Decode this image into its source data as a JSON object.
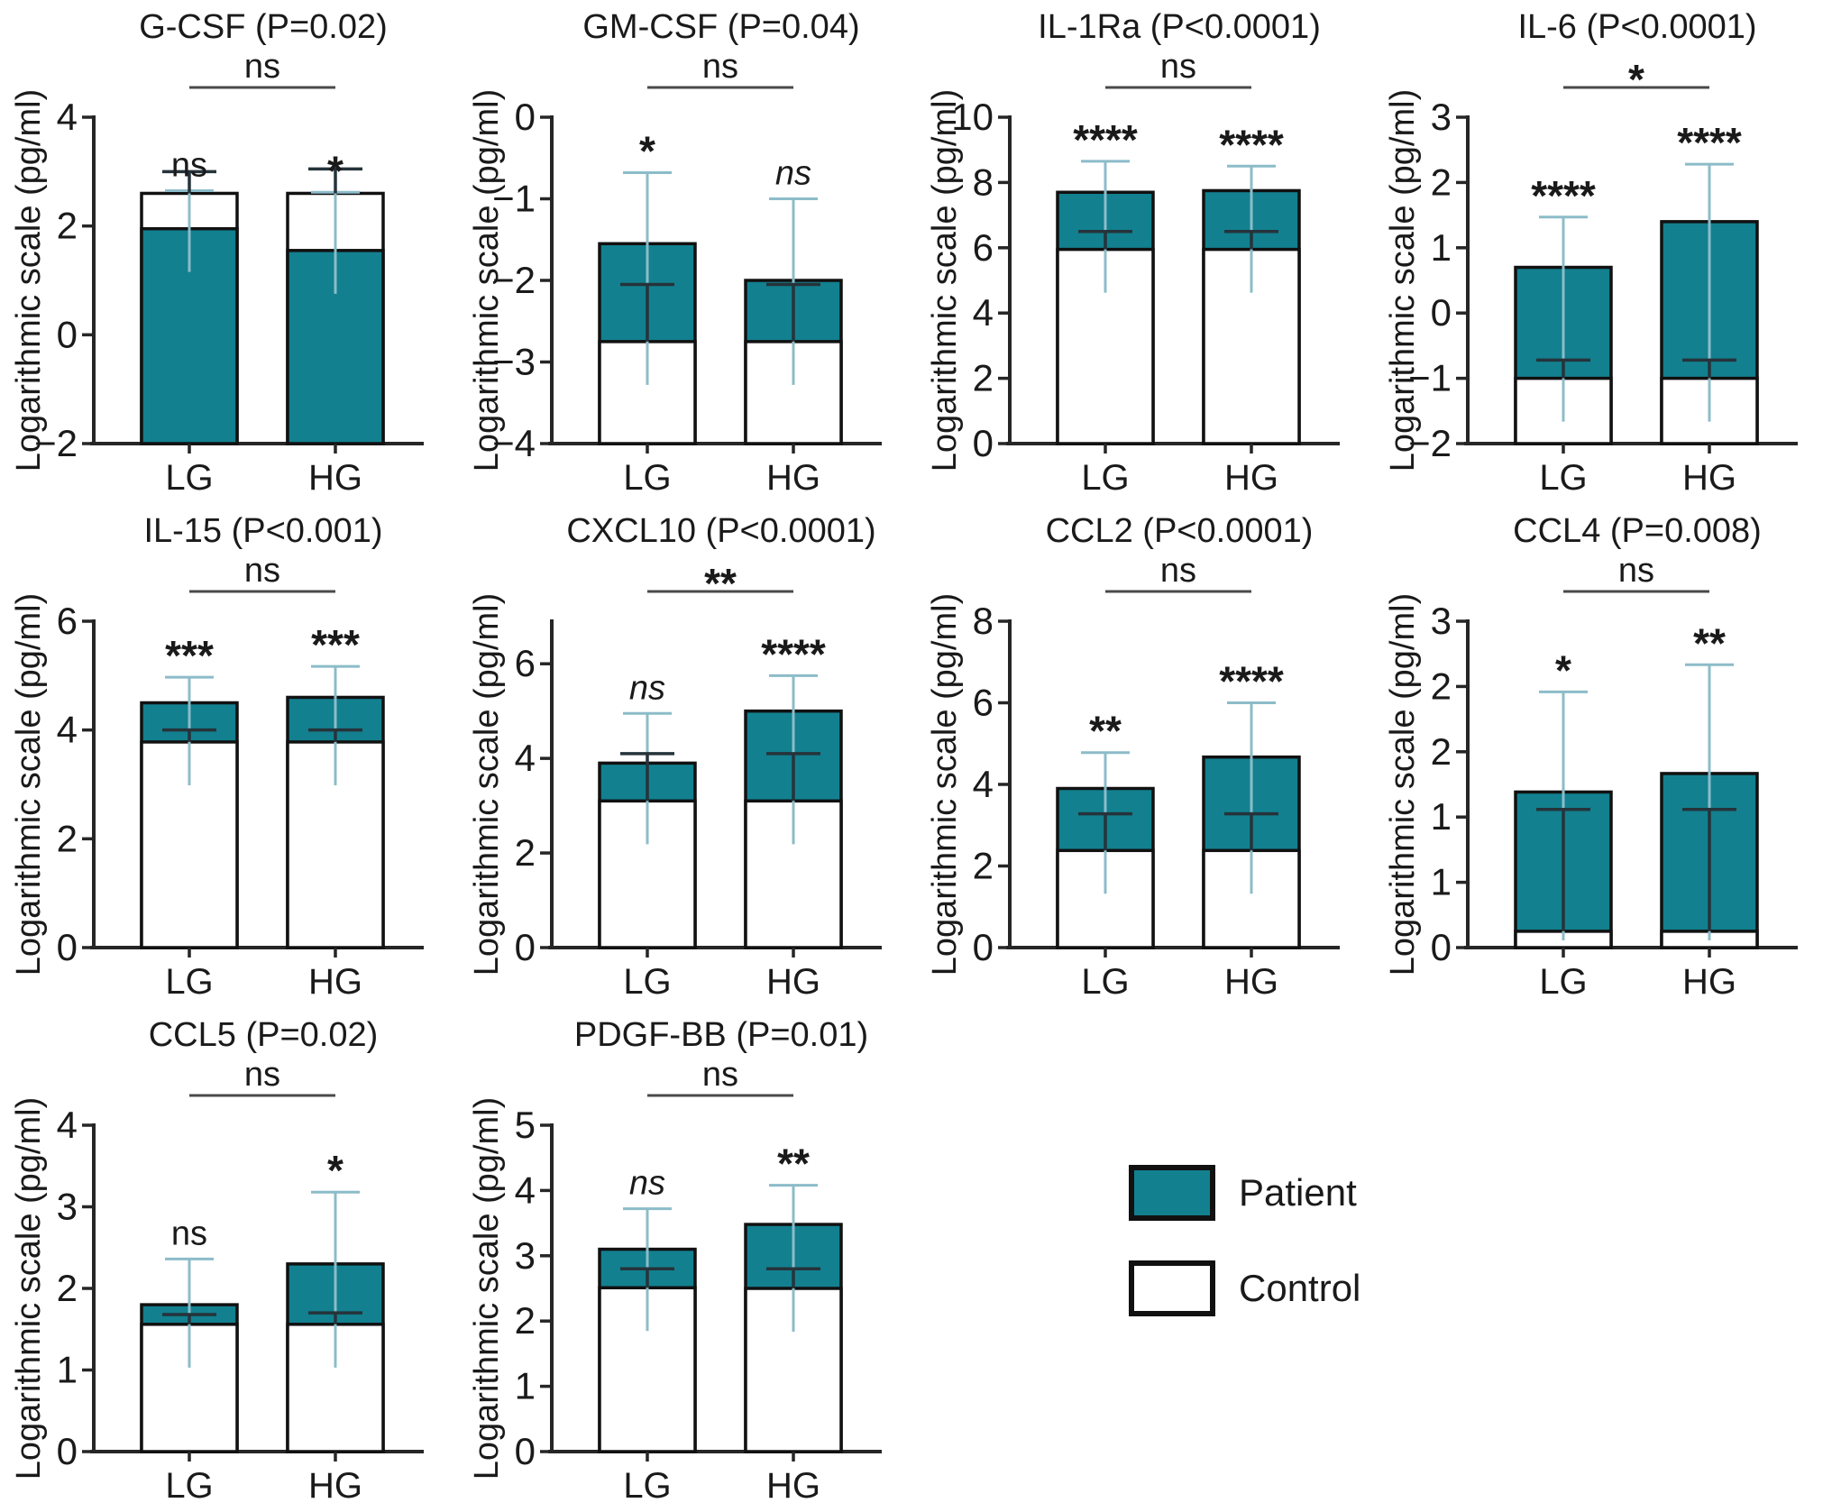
{
  "figure": {
    "y_axis_label": "Logarithmic scale (pg/ml)",
    "categories": [
      "LG",
      "HG"
    ]
  },
  "legend": {
    "patient": "Patient",
    "control": "Control"
  },
  "colors": {
    "patient_fill": "#12808f",
    "patient_error": "#8cbcc9",
    "control_fill": "#ffffff",
    "control_error": "#26333a",
    "outline": "#111111",
    "axis": "#262626",
    "bracket": "#4a4a4a",
    "text": "#1a1a1a"
  },
  "chart_data": [
    {
      "type": "bar",
      "title": "G-CSF (P=0.02)",
      "ylabel": "Logarithmic scale (pg/ml)",
      "ylim": [
        -2,
        4
      ],
      "yticks": [
        {
          "v": 4,
          "label": "4"
        },
        {
          "v": 2,
          "label": "2"
        },
        {
          "v": 0,
          "label": "0"
        },
        {
          "v": -2,
          "label": "−2"
        }
      ],
      "comparison": {
        "label": "ns",
        "italic": false
      },
      "bars": [
        {
          "category": "LG",
          "significance": "ns",
          "italic": false,
          "patient_top": 1.95,
          "patient_err_top": 2.65,
          "control_top": 2.6,
          "control_err_top": 3.0
        },
        {
          "category": "HG",
          "significance": "*",
          "italic": false,
          "patient_top": 1.55,
          "patient_err_top": 2.62,
          "control_top": 2.6,
          "control_err_top": 3.05
        }
      ]
    },
    {
      "type": "bar",
      "title": "GM-CSF (P=0.04)",
      "ylabel": "Logarithmic scale (pg/ml)",
      "ylim": [
        -4,
        0
      ],
      "yticks": [
        {
          "v": 0,
          "label": "0"
        },
        {
          "v": -1,
          "label": "−1"
        },
        {
          "v": -2,
          "label": "−2"
        },
        {
          "v": -3,
          "label": "−3"
        },
        {
          "v": -4,
          "label": "−4"
        }
      ],
      "comparison": {
        "label": "ns",
        "italic": false
      },
      "bars": [
        {
          "category": "LG",
          "significance": "*",
          "italic": false,
          "patient_top": -1.55,
          "patient_err_top": -0.68,
          "control_top": -2.75,
          "control_err_top": -2.05
        },
        {
          "category": "HG",
          "significance": "ns",
          "italic": true,
          "patient_top": -2.0,
          "patient_err_top": -1.0,
          "control_top": -2.75,
          "control_err_top": -2.05
        }
      ]
    },
    {
      "type": "bar",
      "title": "IL-1Ra (P<0.0001)",
      "ylabel": "Logarithmic scale (pg/ml)",
      "ylim": [
        0,
        10
      ],
      "yticks": [
        {
          "v": 10,
          "label": "10"
        },
        {
          "v": 8,
          "label": "8"
        },
        {
          "v": 6,
          "label": "6"
        },
        {
          "v": 4,
          "label": "4"
        },
        {
          "v": 2,
          "label": "2"
        },
        {
          "v": 0,
          "label": "0"
        }
      ],
      "comparison": {
        "label": "ns",
        "italic": false
      },
      "bars": [
        {
          "category": "LG",
          "significance": "****",
          "italic": false,
          "patient_top": 7.7,
          "patient_err_top": 8.65,
          "control_top": 5.95,
          "control_err_top": 6.5
        },
        {
          "category": "HG",
          "significance": "****",
          "italic": false,
          "patient_top": 7.75,
          "patient_err_top": 8.5,
          "control_top": 5.95,
          "control_err_top": 6.5
        }
      ]
    },
    {
      "type": "bar",
      "title": "IL-6 (P<0.0001)",
      "ylabel": "Logarithmic scale (pg/ml)",
      "ylim": [
        -2,
        3
      ],
      "yticks": [
        {
          "v": 3,
          "label": "3"
        },
        {
          "v": 2,
          "label": "2"
        },
        {
          "v": 1,
          "label": "1"
        },
        {
          "v": 0,
          "label": "0"
        },
        {
          "v": -1,
          "label": "−1"
        },
        {
          "v": -2,
          "label": "−2"
        }
      ],
      "comparison": {
        "label": "*",
        "italic": false
      },
      "bars": [
        {
          "category": "LG",
          "significance": "****",
          "italic": false,
          "patient_top": 0.7,
          "patient_err_top": 1.47,
          "control_top": -1.0,
          "control_err_top": -0.72
        },
        {
          "category": "HG",
          "significance": "****",
          "italic": false,
          "patient_top": 1.4,
          "patient_err_top": 2.28,
          "control_top": -1.0,
          "control_err_top": -0.72
        }
      ]
    },
    {
      "type": "bar",
      "title": "IL-15 (P<0.001)",
      "ylabel": "Logarithmic scale (pg/ml)",
      "ylim": [
        0,
        6
      ],
      "yticks": [
        {
          "v": 6,
          "label": "6"
        },
        {
          "v": 4,
          "label": "4"
        },
        {
          "v": 2,
          "label": "2"
        },
        {
          "v": 0,
          "label": "0"
        }
      ],
      "comparison": {
        "label": "ns",
        "italic": false
      },
      "bars": [
        {
          "category": "LG",
          "significance": "***",
          "italic": false,
          "patient_top": 4.5,
          "patient_err_top": 4.97,
          "control_top": 3.78,
          "control_err_top": 4.0
        },
        {
          "category": "HG",
          "significance": "***",
          "italic": false,
          "patient_top": 4.6,
          "patient_err_top": 5.17,
          "control_top": 3.78,
          "control_err_top": 4.0
        }
      ]
    },
    {
      "type": "bar",
      "title": "CXCL10 (P<0.0001)",
      "ylabel": "Logarithmic scale (pg/ml)",
      "ylim": [
        0,
        6.9
      ],
      "yticks": [
        {
          "v": 6,
          "label": "6"
        },
        {
          "v": 4,
          "label": "4"
        },
        {
          "v": 2,
          "label": "2"
        },
        {
          "v": 0,
          "label": "0"
        }
      ],
      "comparison": {
        "label": "**",
        "italic": false
      },
      "bars": [
        {
          "category": "LG",
          "significance": "ns",
          "italic": true,
          "patient_top": 3.9,
          "patient_err_top": 4.95,
          "control_top": 3.1,
          "control_err_top": 4.1
        },
        {
          "category": "HG",
          "significance": "****",
          "italic": false,
          "patient_top": 5.0,
          "patient_err_top": 5.75,
          "control_top": 3.1,
          "control_err_top": 4.1
        }
      ]
    },
    {
      "type": "bar",
      "title": "CCL2 (P<0.0001)",
      "ylabel": "Logarithmic scale (pg/ml)",
      "ylim": [
        0,
        8
      ],
      "yticks": [
        {
          "v": 8,
          "label": "8"
        },
        {
          "v": 6,
          "label": "6"
        },
        {
          "v": 4,
          "label": "4"
        },
        {
          "v": 2,
          "label": "2"
        },
        {
          "v": 0,
          "label": "0"
        }
      ],
      "comparison": {
        "label": "ns",
        "italic": false
      },
      "bars": [
        {
          "category": "LG",
          "significance": "**",
          "italic": false,
          "patient_top": 3.9,
          "patient_err_top": 4.78,
          "control_top": 2.38,
          "control_err_top": 3.28
        },
        {
          "category": "HG",
          "significance": "****",
          "italic": false,
          "patient_top": 4.67,
          "patient_err_top": 6.0,
          "control_top": 2.38,
          "control_err_top": 3.28
        }
      ]
    },
    {
      "type": "bar",
      "title": "CCL4 (P=0.008)",
      "ylabel": "Logarithmic scale (pg/ml)",
      "ylim": [
        0,
        3
      ],
      "yticks": [
        {
          "v": 3,
          "label": "3"
        },
        {
          "v": 2.4,
          "label": "2"
        },
        {
          "v": 1.8,
          "label": "2"
        },
        {
          "v": 1.2,
          "label": "1"
        },
        {
          "v": 0.6,
          "label": "1"
        },
        {
          "v": 0,
          "label": "0"
        }
      ],
      "comparison": {
        "label": "ns",
        "italic": false
      },
      "bars": [
        {
          "category": "LG",
          "significance": "*",
          "italic": false,
          "patient_top": 1.43,
          "patient_err_top": 2.35,
          "control_top": 0.15,
          "control_err_top": 1.27
        },
        {
          "category": "HG",
          "significance": "**",
          "italic": false,
          "patient_top": 1.6,
          "patient_err_top": 2.6,
          "control_top": 0.15,
          "control_err_top": 1.27
        }
      ]
    },
    {
      "type": "bar",
      "title": "CCL5 (P=0.02)",
      "ylabel": "Logarithmic scale (pg/ml)",
      "ylim": [
        0,
        4
      ],
      "yticks": [
        {
          "v": 4,
          "label": "4"
        },
        {
          "v": 3,
          "label": "3"
        },
        {
          "v": 2,
          "label": "2"
        },
        {
          "v": 1,
          "label": "1"
        },
        {
          "v": 0,
          "label": "0"
        }
      ],
      "comparison": {
        "label": "ns",
        "italic": false
      },
      "bars": [
        {
          "category": "LG",
          "significance": "ns",
          "italic": false,
          "patient_top": 1.8,
          "patient_err_top": 2.36,
          "control_top": 1.56,
          "control_err_top": 1.68
        },
        {
          "category": "HG",
          "significance": "*",
          "italic": false,
          "patient_top": 2.3,
          "patient_err_top": 3.18,
          "control_top": 1.56,
          "control_err_top": 1.7
        }
      ]
    },
    {
      "type": "bar",
      "title": "PDGF-BB (P=0.01)",
      "ylabel": "Logarithmic scale (pg/ml)",
      "ylim": [
        0,
        5
      ],
      "yticks": [
        {
          "v": 5,
          "label": "5"
        },
        {
          "v": 4,
          "label": "4"
        },
        {
          "v": 3,
          "label": "3"
        },
        {
          "v": 2,
          "label": "2"
        },
        {
          "v": 1,
          "label": "1"
        },
        {
          "v": 0,
          "label": "0"
        }
      ],
      "comparison": {
        "label": "ns",
        "italic": false
      },
      "bars": [
        {
          "category": "LG",
          "significance": "ns",
          "italic": true,
          "patient_top": 3.1,
          "patient_err_top": 3.72,
          "control_top": 2.51,
          "control_err_top": 2.8
        },
        {
          "category": "HG",
          "significance": "**",
          "italic": false,
          "patient_top": 3.48,
          "patient_err_top": 4.08,
          "control_top": 2.5,
          "control_err_top": 2.8
        }
      ]
    }
  ]
}
